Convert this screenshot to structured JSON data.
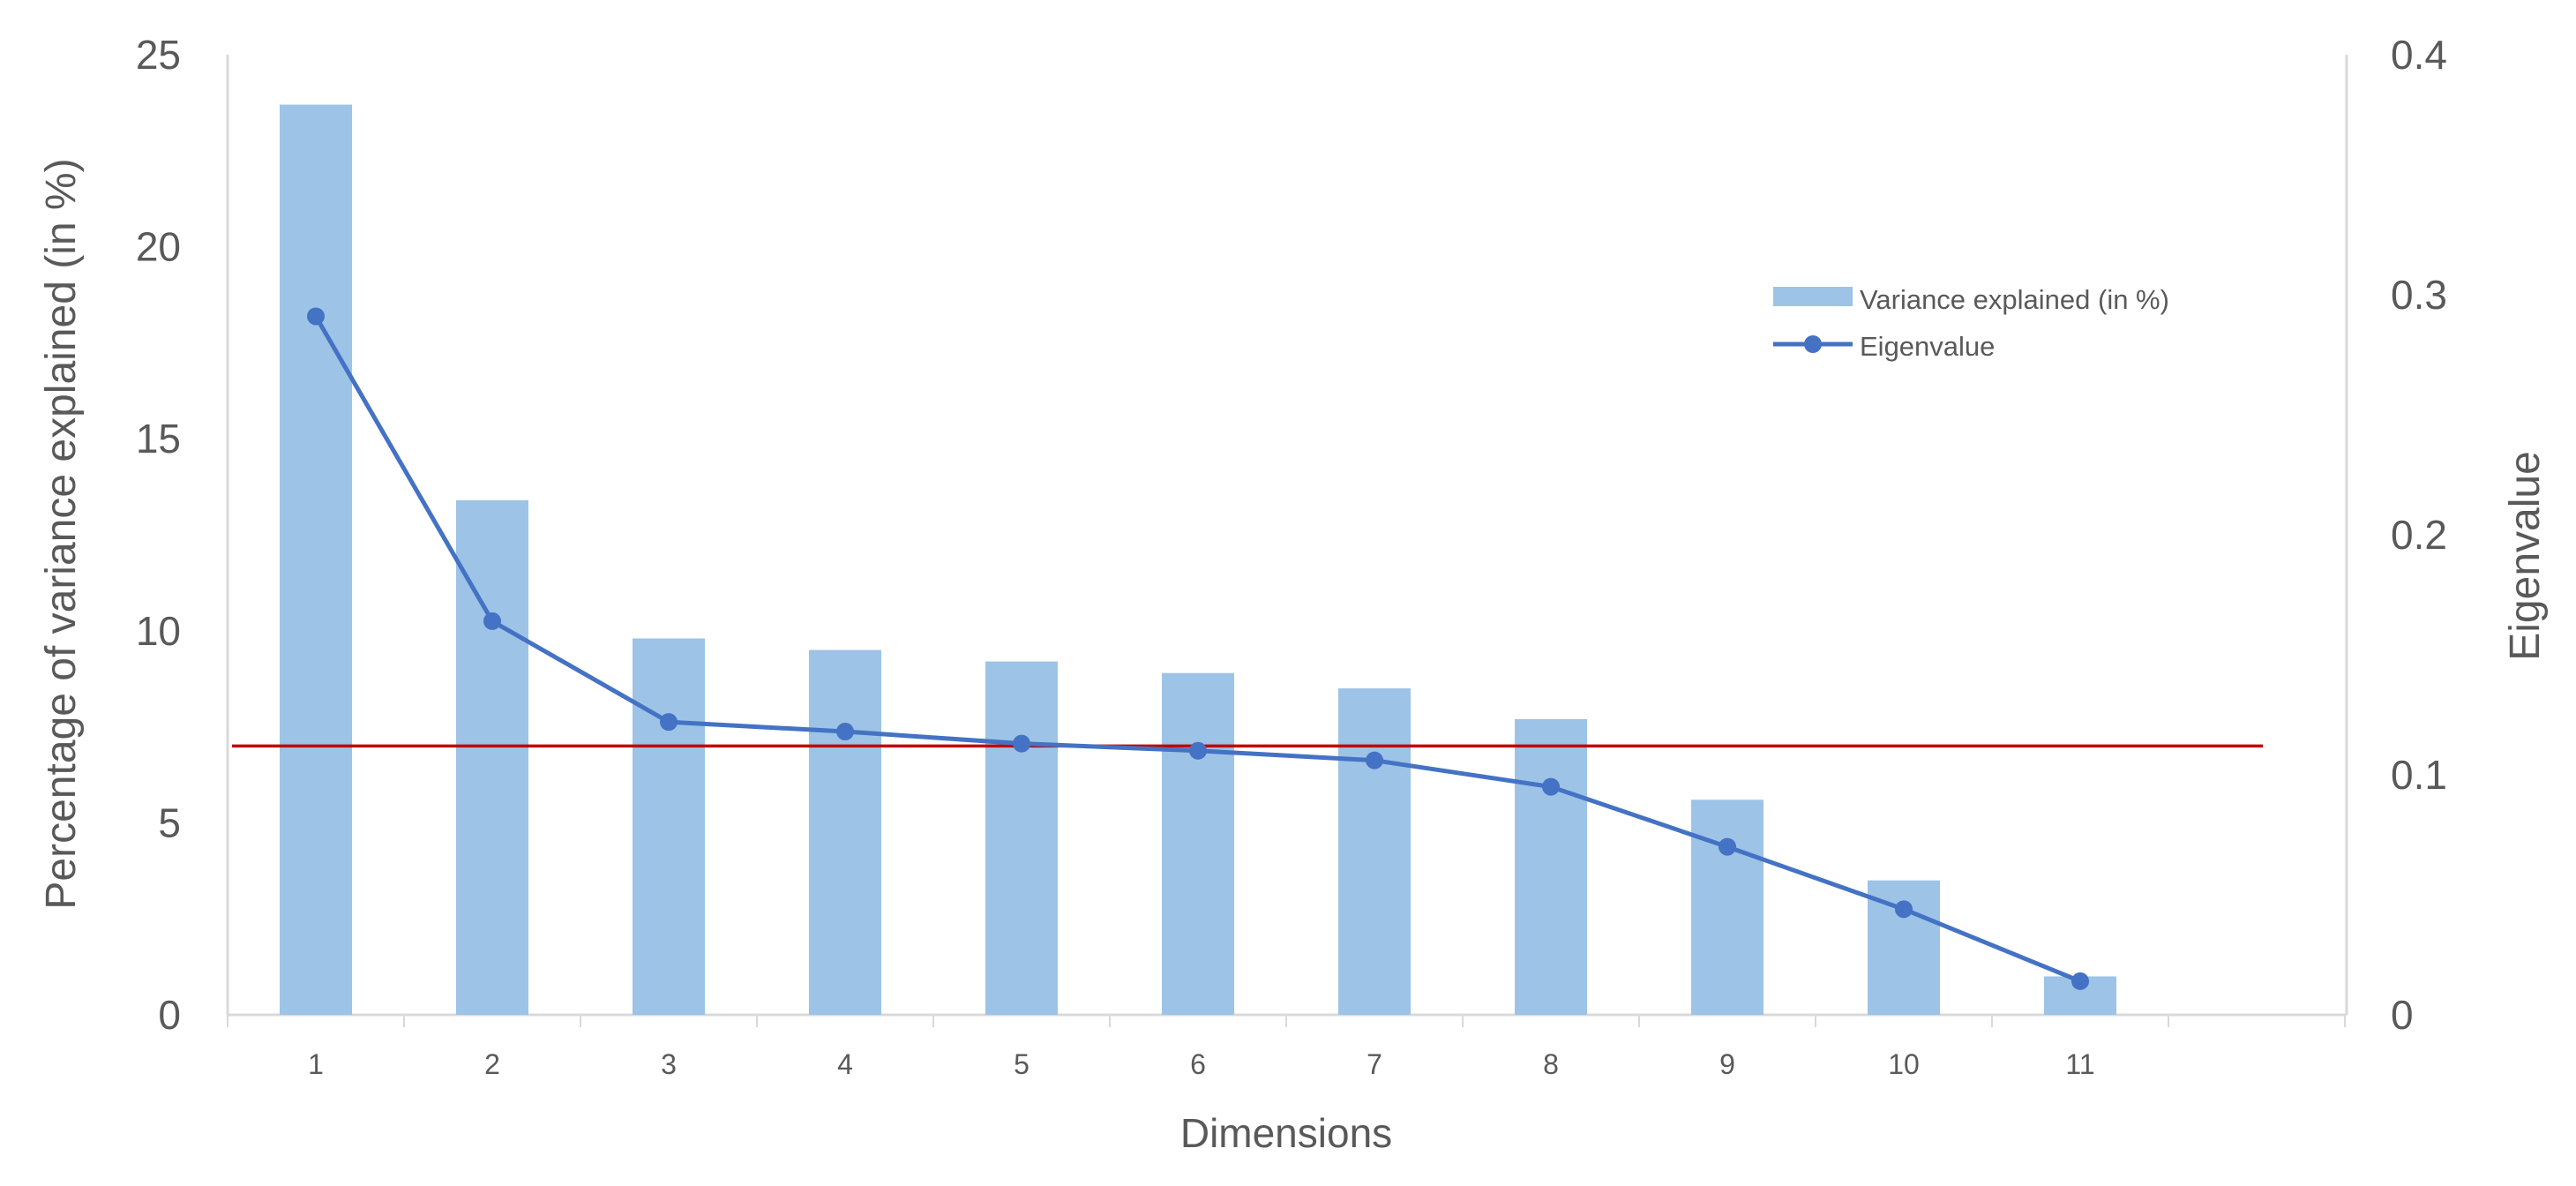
{
  "chart_data": {
    "type": "bar",
    "categories": [
      "1",
      "2",
      "3",
      "4",
      "5",
      "6",
      "7",
      "8",
      "9",
      "10",
      "11"
    ],
    "series": [
      {
        "name": "Variance explained (in %)",
        "type": "bar",
        "axis": "left",
        "color": "#9DC3E6",
        "values": [
          23.7,
          13.4,
          9.8,
          9.5,
          9.2,
          8.9,
          8.5,
          7.7,
          5.6,
          3.5,
          1.0
        ]
      },
      {
        "name": "Eigenvalue",
        "type": "line",
        "axis": "right",
        "color": "#4472C4",
        "values": [
          0.291,
          0.164,
          0.122,
          0.118,
          0.113,
          0.11,
          0.106,
          0.095,
          0.07,
          0.044,
          0.014
        ]
      }
    ],
    "reference_line": {
      "axis": "left",
      "value": 7.0,
      "color": "#C00000"
    },
    "xlabel": "Dimensions",
    "ylabel": "Percentage of variance explained (in %)",
    "y2label": "Eigenvalue",
    "ylim": [
      0,
      25
    ],
    "yticks": [
      0,
      5,
      10,
      15,
      20,
      25
    ],
    "y2lim": [
      0,
      0.4
    ],
    "y2ticks": [
      "0",
      "0.1",
      "0.2",
      "0.3",
      "0.4"
    ],
    "grid": false,
    "legend_position": "top-right",
    "axis_color": "#D9D9D9",
    "text_color": "#595959"
  }
}
